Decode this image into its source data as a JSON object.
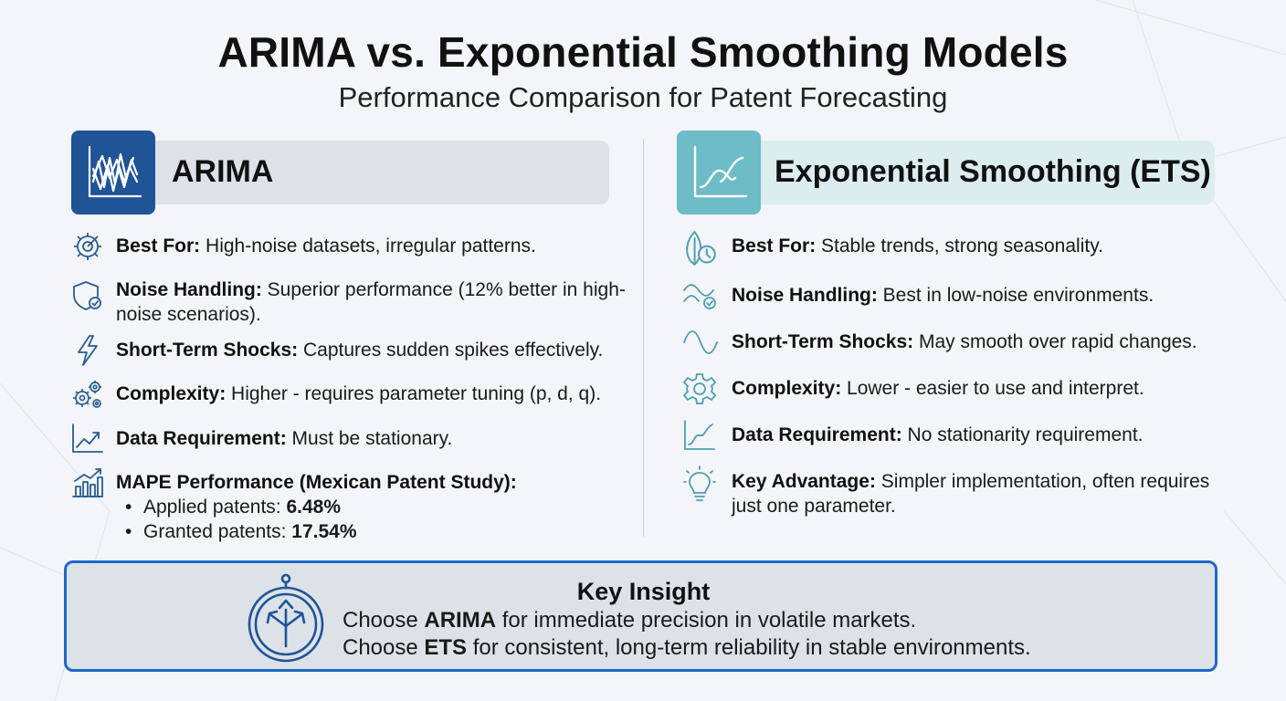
{
  "title": "ARIMA vs. Exponential Smoothing Models",
  "subtitle": "Performance Comparison for Patent Forecasting",
  "arima": {
    "header": "ARIMA",
    "items": [
      {
        "label": "Best For:",
        "text": " High-noise datasets, irregular patterns.",
        "icon": "gear-target-icon"
      },
      {
        "label": "Noise Handling:",
        "text": " Superior performance (12% better in high-noise scenarios).",
        "icon": "shield-check-icon"
      },
      {
        "label": "Short-Term Shocks:",
        "text": " Captures sudden spikes effectively.",
        "icon": "lightning-icon"
      },
      {
        "label": "Complexity:",
        "text": " Higher - requires parameter tuning (p, d, q).",
        "icon": "gears-icon"
      },
      {
        "label": "Data Requirement:",
        "text": " Must be stationary.",
        "icon": "trend-up-icon"
      },
      {
        "label": "MAPE Performance (Mexican Patent Study):",
        "text": "",
        "icon": "bar-chart-icon"
      }
    ],
    "mape": [
      {
        "label": "Applied patents: ",
        "value": "6.48%"
      },
      {
        "label": "Granted patents: ",
        "value": "17.54%"
      }
    ]
  },
  "ets": {
    "header": "Exponential Smoothing (ETS)",
    "items": [
      {
        "label": "Best For:",
        "text": " Stable trends, strong seasonality.",
        "icon": "leaf-clock-icon"
      },
      {
        "label": "Noise Handling:",
        "text": " Best in low-noise environments.",
        "icon": "wave-check-icon"
      },
      {
        "label": "Short-Term Shocks:",
        "text": " May smooth over rapid changes.",
        "icon": "sine-wave-icon"
      },
      {
        "label": "Complexity:",
        "text": " Lower - easier to use and interpret.",
        "icon": "gear-icon"
      },
      {
        "label": "Data Requirement:",
        "text": " No stationarity requirement.",
        "icon": "curve-chart-icon"
      },
      {
        "label": "Key Advantage:",
        "text": " Simpler implementation, often requires just one parameter.",
        "icon": "lightbulb-icon"
      }
    ]
  },
  "insight": {
    "title": "Key Insight",
    "line1": {
      "pre": "Choose ",
      "bold": "ARIMA",
      "post": " for immediate precision in volatile markets."
    },
    "line2": {
      "pre": "Choose ",
      "bold": "ETS",
      "post": " for consistent, long-term reliability in stable environments."
    },
    "icon": "compass-arrows-icon"
  },
  "colors": {
    "arima_accent": "#1f5496",
    "ets_accent": "#6dbcc8",
    "icon_stroke": "#2a5d8f",
    "ets_icon_stroke": "#4d9fb0",
    "insight_border": "#2067c6"
  }
}
